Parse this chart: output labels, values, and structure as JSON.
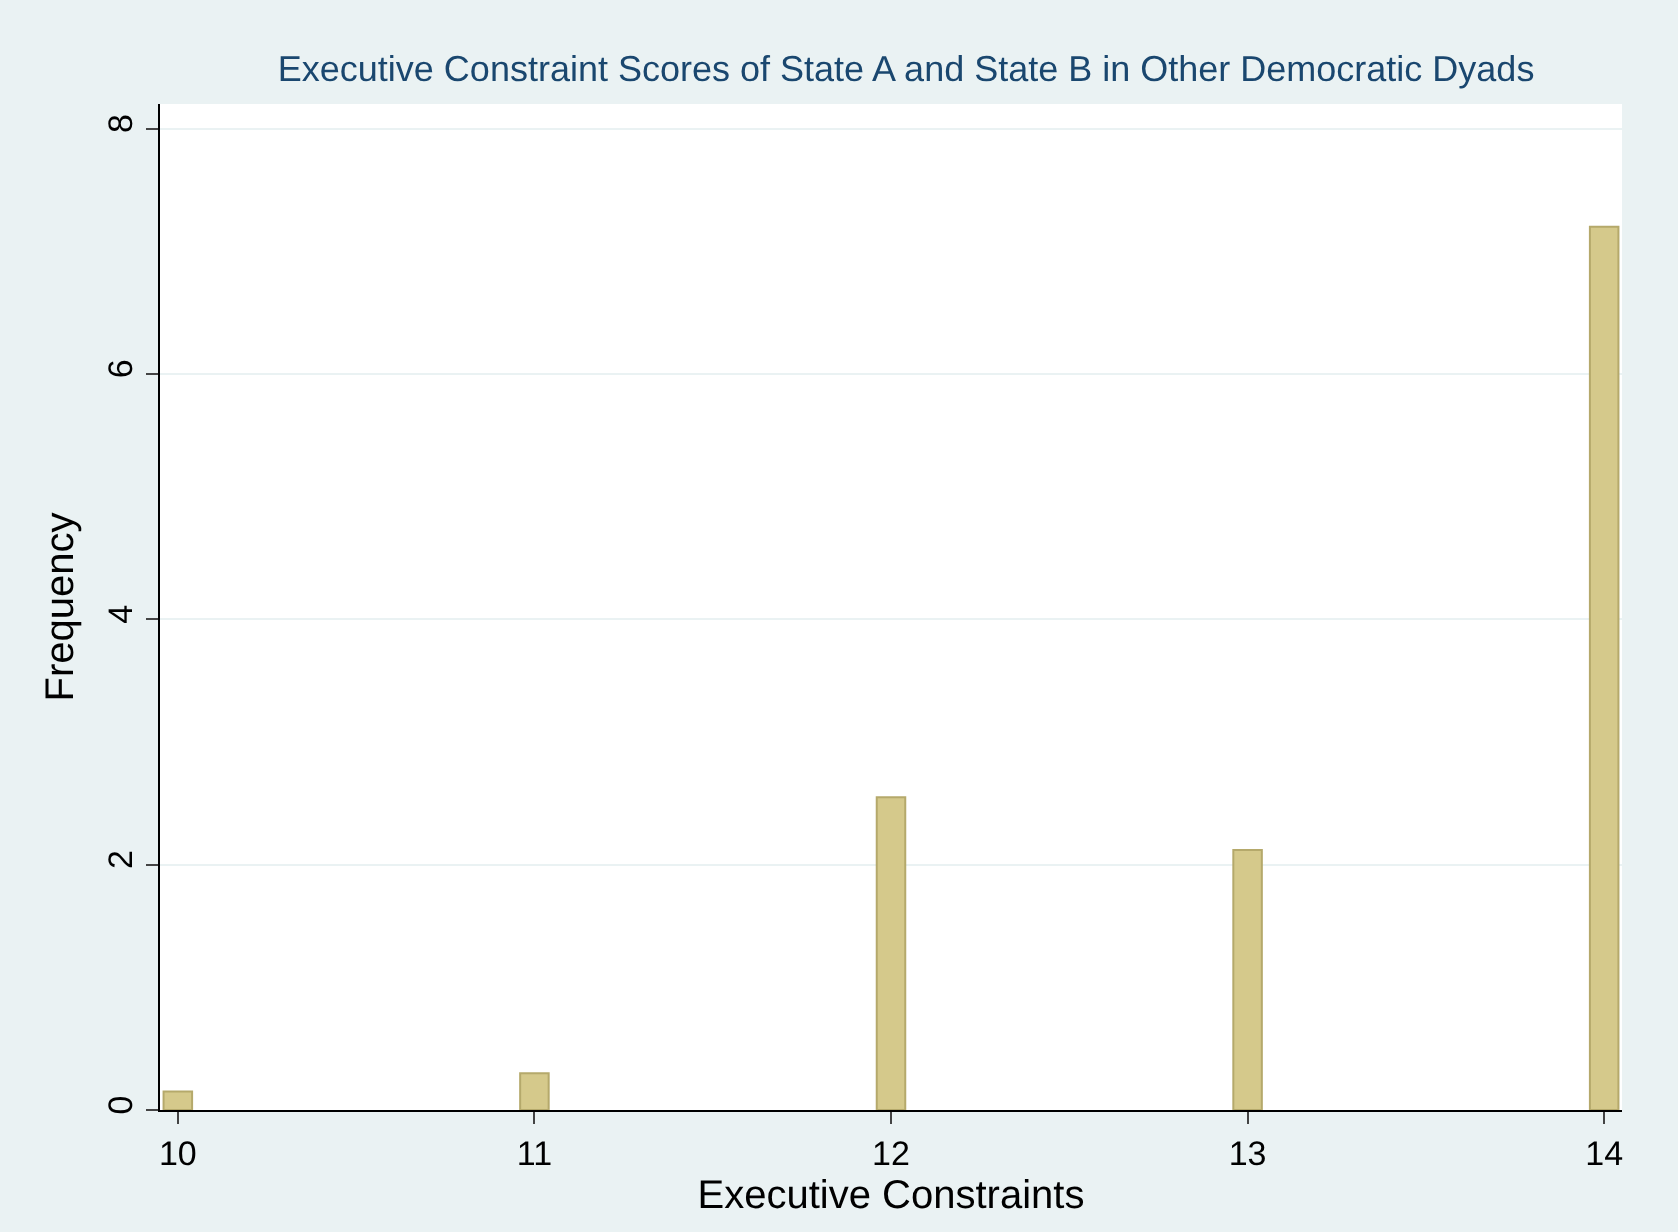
{
  "chart_data": {
    "type": "bar",
    "title": "Executive Constraint Scores of State A and State B in Other Democratic Dyads",
    "xlabel": "Executive Constraints",
    "ylabel": "Frequency",
    "x": [
      10,
      11,
      12,
      13,
      14
    ],
    "values": [
      0.15,
      0.3,
      2.55,
      2.12,
      7.2
    ],
    "color": "#d5c98b",
    "xlim": [
      9.95,
      14.05
    ],
    "xticks": [
      10,
      11,
      12,
      13,
      14
    ],
    "ylim": [
      0,
      8.2
    ],
    "yticks": [
      0,
      2,
      4,
      6,
      8
    ],
    "grid": "y"
  }
}
